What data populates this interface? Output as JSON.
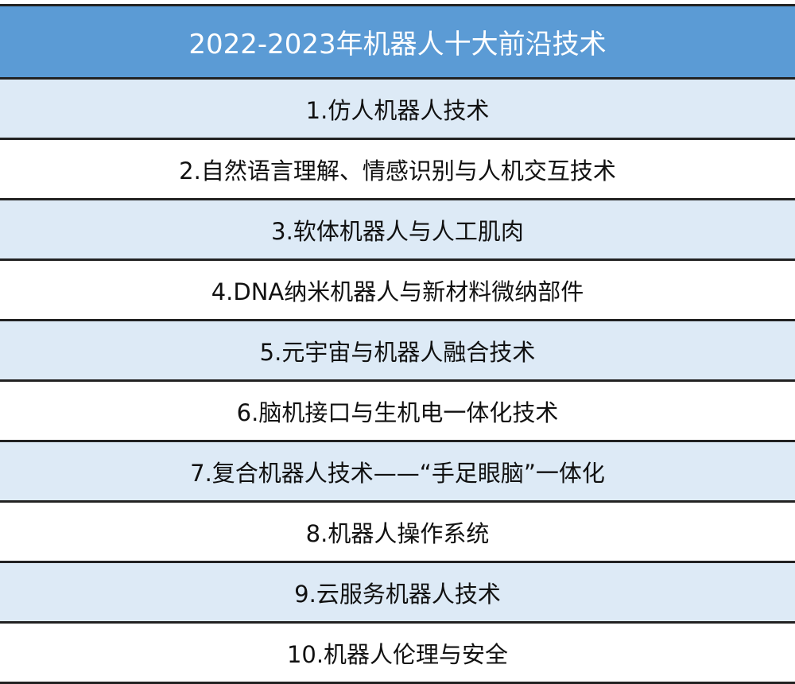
{
  "title": "2022-2023年机器人十大前沿技术",
  "colors": {
    "header": "#5b9bd5",
    "band": "#ddeaf6"
  },
  "rows": [
    "1.仿人机器人技术",
    "2.自然语言理解、情感识别与人机交互技术",
    "3.软体机器人与人工肌肉",
    "4.DNA纳米机器人与新材料微纳部件",
    "5.元宇宙与机器人融合技术",
    "6.脑机接口与生机电一体化技术",
    "7.复合机器人技术——“手足眼脑”一体化",
    "8.机器人操作系统",
    "9.云服务机器人技术",
    "10.机器人伦理与安全"
  ]
}
